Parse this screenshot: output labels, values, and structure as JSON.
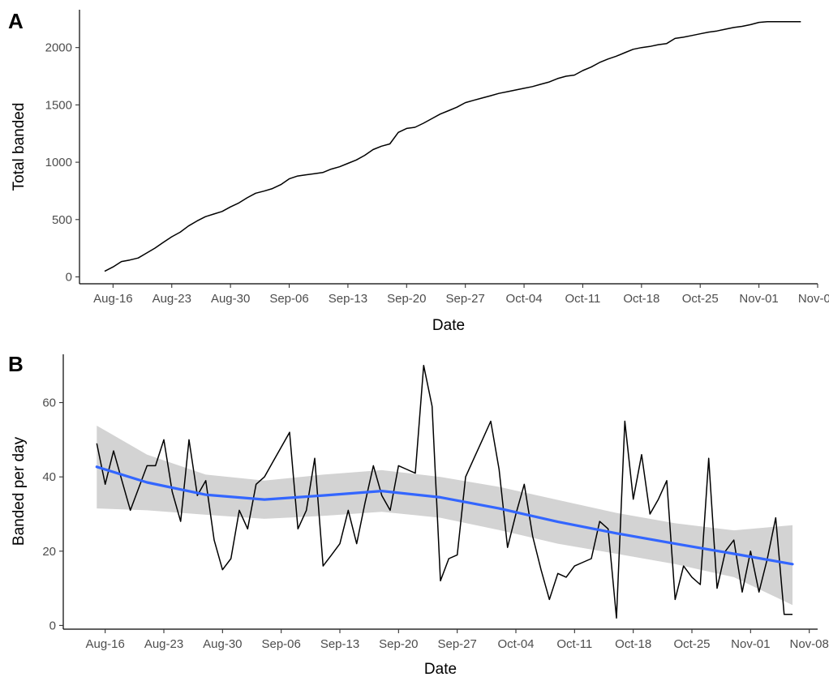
{
  "chart_data": [
    {
      "panel_label": "A",
      "type": "line",
      "xlabel": "Date",
      "ylabel": "Total banded",
      "x_ticks": [
        "Aug-16",
        "Aug-23",
        "Aug-30",
        "Sep-06",
        "Sep-13",
        "Sep-20",
        "Sep-27",
        "Oct-04",
        "Oct-11",
        "Oct-18",
        "Oct-25",
        "Nov-01",
        "Nov-08"
      ],
      "x_tick_dates": [
        "2000-08-16",
        "2000-08-23",
        "2000-08-30",
        "2000-09-06",
        "2000-09-13",
        "2000-09-20",
        "2000-09-27",
        "2000-10-04",
        "2000-10-11",
        "2000-10-18",
        "2000-10-25",
        "2000-11-01",
        "2000-11-08"
      ],
      "y_ticks": [
        0,
        500,
        1000,
        1500,
        2000
      ],
      "xlim": [
        "2000-08-12",
        "2000-11-08"
      ],
      "ylim": [
        -60,
        2330
      ],
      "grid": false,
      "line_color": "#000000",
      "x": [
        "2000-08-15",
        "2000-08-16",
        "2000-08-17",
        "2000-08-18",
        "2000-08-19",
        "2000-08-20",
        "2000-08-21",
        "2000-08-22",
        "2000-08-23",
        "2000-08-24",
        "2000-08-25",
        "2000-08-26",
        "2000-08-27",
        "2000-08-28",
        "2000-08-29",
        "2000-08-30",
        "2000-08-31",
        "2000-09-01",
        "2000-09-02",
        "2000-09-03",
        "2000-09-04",
        "2000-09-05",
        "2000-09-06",
        "2000-09-07",
        "2000-09-08",
        "2000-09-09",
        "2000-09-10",
        "2000-09-11",
        "2000-09-12",
        "2000-09-13",
        "2000-09-14",
        "2000-09-15",
        "2000-09-16",
        "2000-09-17",
        "2000-09-18",
        "2000-09-19",
        "2000-09-20",
        "2000-09-21",
        "2000-09-22",
        "2000-09-23",
        "2000-09-24",
        "2000-09-25",
        "2000-09-26",
        "2000-09-27",
        "2000-09-28",
        "2000-09-29",
        "2000-09-30",
        "2000-10-01",
        "2000-10-02",
        "2000-10-03",
        "2000-10-04",
        "2000-10-05",
        "2000-10-06",
        "2000-10-07",
        "2000-10-08",
        "2000-10-09",
        "2000-10-10",
        "2000-10-11",
        "2000-10-12",
        "2000-10-13",
        "2000-10-14",
        "2000-10-15",
        "2000-10-16",
        "2000-10-17",
        "2000-10-18",
        "2000-10-19",
        "2000-10-20",
        "2000-10-21",
        "2000-10-22",
        "2000-10-23",
        "2000-10-24",
        "2000-10-25",
        "2000-10-26",
        "2000-10-27",
        "2000-10-28",
        "2000-10-29",
        "2000-10-30",
        "2000-10-31",
        "2000-11-01",
        "2000-11-02",
        "2000-11-03",
        "2000-11-04",
        "2000-11-05",
        "2000-11-06"
      ],
      "y": [
        49,
        87,
        134,
        147,
        165,
        208,
        251,
        301,
        350,
        390,
        444,
        487,
        525,
        548,
        571,
        610,
        645,
        690,
        730,
        748,
        770,
        805,
        855,
        880,
        890,
        900,
        910,
        940,
        960,
        990,
        1020,
        1060,
        1110,
        1140,
        1160,
        1260,
        1295,
        1305,
        1340,
        1380,
        1420,
        1450,
        1480,
        1520,
        1540,
        1560,
        1580,
        1600,
        1615,
        1630,
        1645,
        1660,
        1680,
        1700,
        1730,
        1750,
        1760,
        1800,
        1830,
        1870,
        1900,
        1925,
        1955,
        1985,
        2000,
        2010,
        2025,
        2035,
        2080,
        2090,
        2105,
        2120,
        2135,
        2145,
        2160,
        2175,
        2185,
        2200,
        2220,
        2225,
        2225,
        2225,
        2225,
        2225
      ]
    },
    {
      "panel_label": "B",
      "type": "line",
      "xlabel": "Date",
      "ylabel": "Banded per day",
      "x_ticks": [
        "Aug-16",
        "Aug-23",
        "Aug-30",
        "Sep-06",
        "Sep-13",
        "Sep-20",
        "Sep-27",
        "Oct-04",
        "Oct-11",
        "Oct-18",
        "Oct-25",
        "Nov-01",
        "Nov-08"
      ],
      "x_tick_dates": [
        "2000-08-16",
        "2000-08-23",
        "2000-08-30",
        "2000-09-06",
        "2000-09-13",
        "2000-09-20",
        "2000-09-27",
        "2000-10-04",
        "2000-10-11",
        "2000-10-18",
        "2000-10-25",
        "2000-11-01",
        "2000-11-08"
      ],
      "y_ticks": [
        0,
        20,
        40,
        60
      ],
      "xlim": [
        "2000-08-11",
        "2000-11-09"
      ],
      "ylim": [
        -1,
        73
      ],
      "grid": false,
      "line_color": "#000000",
      "smooth_color": "#3366FF",
      "band_color": "#d3d3d3",
      "x": [
        "2000-08-15",
        "2000-08-16",
        "2000-08-17",
        "2000-08-18",
        "2000-08-19",
        "2000-08-20",
        "2000-08-21",
        "2000-08-22",
        "2000-08-23",
        "2000-08-24",
        "2000-08-25",
        "2000-08-26",
        "2000-08-27",
        "2000-08-28",
        "2000-08-29",
        "2000-08-30",
        "2000-08-31",
        "2000-09-01",
        "2000-09-02",
        "2000-09-03",
        "2000-09-04",
        "2000-09-05",
        "2000-09-06",
        "2000-09-07",
        "2000-09-08",
        "2000-09-09",
        "2000-09-10",
        "2000-09-11",
        "2000-09-12",
        "2000-09-13",
        "2000-09-14",
        "2000-09-15",
        "2000-09-16",
        "2000-09-17",
        "2000-09-18",
        "2000-09-19",
        "2000-09-20",
        "2000-09-21",
        "2000-09-22",
        "2000-09-23",
        "2000-09-24",
        "2000-09-25",
        "2000-09-26",
        "2000-09-27",
        "2000-09-28",
        "2000-09-29",
        "2000-09-30",
        "2000-10-01",
        "2000-10-02",
        "2000-10-03",
        "2000-10-04",
        "2000-10-05",
        "2000-10-06",
        "2000-10-07",
        "2000-10-08",
        "2000-10-09",
        "2000-10-10",
        "2000-10-11",
        "2000-10-12",
        "2000-10-13",
        "2000-10-14",
        "2000-10-15",
        "2000-10-16",
        "2000-10-17",
        "2000-10-18",
        "2000-10-19",
        "2000-10-20",
        "2000-10-21",
        "2000-10-22",
        "2000-10-23",
        "2000-10-24",
        "2000-10-25",
        "2000-10-26",
        "2000-10-27",
        "2000-10-28",
        "2000-10-29",
        "2000-10-30",
        "2000-10-31",
        "2000-11-01",
        "2000-11-02",
        "2000-11-03",
        "2000-11-04",
        "2000-11-05",
        "2000-11-06"
      ],
      "y": [
        49,
        38,
        47,
        39,
        31,
        37,
        43,
        43,
        50,
        36,
        28,
        50,
        35,
        39,
        23,
        15,
        18,
        31,
        26,
        38,
        40,
        44,
        48,
        52,
        26,
        31,
        45,
        16,
        19,
        22,
        31,
        22,
        33,
        43,
        35,
        31,
        43,
        42,
        41,
        70,
        59,
        12,
        18,
        19,
        40,
        45,
        50,
        55,
        42,
        21,
        30,
        38,
        24,
        15,
        7,
        14,
        13,
        16,
        17,
        18,
        28,
        26,
        2,
        55,
        34,
        46,
        30,
        34,
        39,
        7,
        16,
        13,
        11,
        45,
        10,
        20,
        23,
        9,
        20,
        9,
        18,
        29,
        3,
        3
      ],
      "smooth_x": [
        "2000-08-15",
        "2000-08-21",
        "2000-08-28",
        "2000-09-04",
        "2000-09-11",
        "2000-09-18",
        "2000-09-25",
        "2000-10-02",
        "2000-10-09",
        "2000-10-16",
        "2000-10-23",
        "2000-10-30",
        "2000-11-06"
      ],
      "smooth_y": [
        42.7,
        38.5,
        35.2,
        33.9,
        35.0,
        36.2,
        34.5,
        31.5,
        27.9,
        24.8,
        22.0,
        19.3,
        16.5
      ],
      "band_lower": [
        31.5,
        31.0,
        29.8,
        28.7,
        29.5,
        30.6,
        29.0,
        25.7,
        22.0,
        19.3,
        16.5,
        13.0,
        5.5
      ],
      "band_upper": [
        53.8,
        46.0,
        40.6,
        39.0,
        40.6,
        41.8,
        40.0,
        37.3,
        33.8,
        30.3,
        27.5,
        25.6,
        27.0
      ]
    }
  ]
}
